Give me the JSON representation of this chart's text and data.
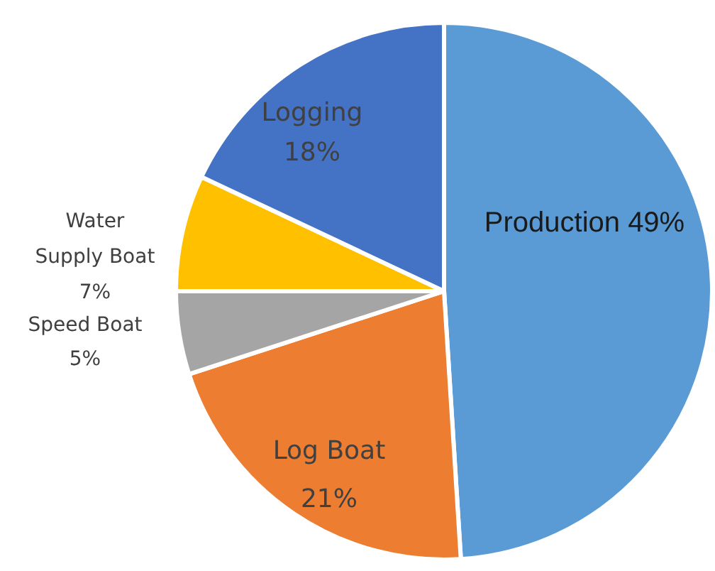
{
  "chart_data": {
    "type": "pie",
    "categories": [
      "Production",
      "Log Boat",
      "Speed Boat",
      "Water Supply Boat",
      "Logging"
    ],
    "values": [
      49,
      21,
      5,
      7,
      18
    ],
    "colors": [
      "#5b9bd5",
      "#ed7d31",
      "#a5a5a5",
      "#ffc000",
      "#4472c4"
    ],
    "value_labels": [
      "49%",
      "21%",
      "5%",
      "7%",
      "18%"
    ]
  }
}
